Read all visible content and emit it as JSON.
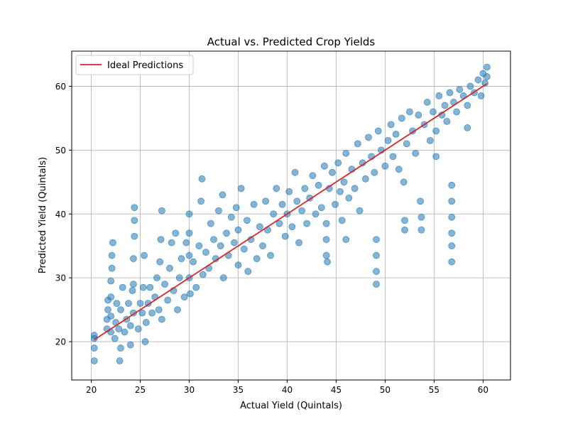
{
  "chart_data": {
    "type": "scatter",
    "title": "Actual vs. Predicted Crop Yields",
    "xlabel": "Actual Yield (Quintals)",
    "ylabel": "Predicted Yield (Quintals)",
    "xlim": [
      18.0,
      62.8
    ],
    "ylim": [
      14.0,
      65.5
    ],
    "xticks": [
      20,
      25,
      30,
      35,
      40,
      45,
      50,
      55,
      60
    ],
    "yticks": [
      20,
      30,
      40,
      50,
      60
    ],
    "grid": true,
    "legend": {
      "placement": "top-left",
      "entries": [
        "Ideal Predictions"
      ]
    },
    "colors": {
      "points": "#1f77b4",
      "ideal_line": "#d62728",
      "grid": "#b0b0b0"
    },
    "series": [
      {
        "kind": "scatter",
        "points": [
          [
            20.3,
            20.5
          ],
          [
            20.3,
            19.0
          ],
          [
            20.3,
            17.0
          ],
          [
            20.3,
            21.0
          ],
          [
            21.6,
            22.0
          ],
          [
            21.6,
            23.5
          ],
          [
            21.7,
            25.0
          ],
          [
            21.7,
            26.5
          ],
          [
            22.0,
            21.5
          ],
          [
            22.0,
            24.0
          ],
          [
            22.0,
            27.0
          ],
          [
            22.0,
            29.5
          ],
          [
            22.1,
            31.5
          ],
          [
            22.1,
            33.5
          ],
          [
            22.2,
            35.5
          ],
          [
            22.4,
            20.5
          ],
          [
            22.5,
            23.0
          ],
          [
            22.6,
            26.0
          ],
          [
            22.8,
            22.0
          ],
          [
            22.9,
            17.0
          ],
          [
            23.0,
            19.0
          ],
          [
            23.0,
            25.0
          ],
          [
            23.2,
            28.5
          ],
          [
            23.4,
            21.5
          ],
          [
            23.6,
            23.5
          ],
          [
            23.8,
            26.0
          ],
          [
            24.0,
            19.5
          ],
          [
            24.0,
            22.5
          ],
          [
            24.2,
            28.0
          ],
          [
            24.3,
            24.5
          ],
          [
            24.3,
            29.0
          ],
          [
            24.3,
            33.0
          ],
          [
            24.4,
            36.5
          ],
          [
            24.4,
            39.0
          ],
          [
            24.4,
            41.0
          ],
          [
            24.8,
            22.0
          ],
          [
            25.0,
            26.0
          ],
          [
            25.2,
            24.5
          ],
          [
            25.3,
            28.5
          ],
          [
            25.4,
            33.5
          ],
          [
            25.5,
            20.0
          ],
          [
            25.6,
            23.0
          ],
          [
            25.8,
            26.0
          ],
          [
            26.0,
            28.5
          ],
          [
            26.2,
            24.5
          ],
          [
            26.5,
            27.0
          ],
          [
            26.7,
            30.0
          ],
          [
            26.9,
            25.0
          ],
          [
            27.0,
            32.5
          ],
          [
            27.1,
            36.0
          ],
          [
            27.2,
            40.5
          ],
          [
            27.2,
            23.5
          ],
          [
            27.5,
            29.0
          ],
          [
            27.8,
            26.5
          ],
          [
            28.0,
            31.5
          ],
          [
            28.2,
            35.5
          ],
          [
            28.4,
            28.0
          ],
          [
            28.6,
            37.0
          ],
          [
            28.8,
            25.0
          ],
          [
            29.0,
            30.0
          ],
          [
            29.2,
            33.0
          ],
          [
            29.5,
            27.0
          ],
          [
            29.7,
            35.5
          ],
          [
            30.0,
            30.0
          ],
          [
            30.0,
            33.5
          ],
          [
            30.0,
            37.0
          ],
          [
            30.0,
            40.0
          ],
          [
            30.1,
            27.5
          ],
          [
            30.4,
            32.5
          ],
          [
            30.7,
            28.5
          ],
          [
            31.0,
            35.0
          ],
          [
            31.2,
            42.0
          ],
          [
            31.3,
            45.5
          ],
          [
            31.4,
            30.5
          ],
          [
            31.7,
            34.0
          ],
          [
            32.0,
            31.5
          ],
          [
            32.2,
            38.5
          ],
          [
            32.5,
            36.0
          ],
          [
            32.7,
            33.0
          ],
          [
            33.0,
            40.5
          ],
          [
            33.2,
            35.0
          ],
          [
            33.4,
            43.0
          ],
          [
            33.5,
            30.0
          ],
          [
            33.8,
            37.0
          ],
          [
            34.0,
            33.5
          ],
          [
            34.3,
            39.5
          ],
          [
            34.6,
            35.5
          ],
          [
            34.8,
            41.0
          ],
          [
            35.0,
            32.0
          ],
          [
            35.0,
            37.5
          ],
          [
            35.3,
            44.0
          ],
          [
            35.6,
            34.5
          ],
          [
            35.9,
            39.0
          ],
          [
            36.0,
            31.0
          ],
          [
            36.3,
            36.0
          ],
          [
            36.6,
            41.5
          ],
          [
            36.9,
            33.0
          ],
          [
            37.2,
            38.0
          ],
          [
            37.5,
            35.0
          ],
          [
            37.8,
            42.0
          ],
          [
            38.0,
            37.5
          ],
          [
            38.3,
            33.5
          ],
          [
            38.6,
            40.0
          ],
          [
            38.9,
            44.0
          ],
          [
            39.2,
            38.5
          ],
          [
            39.5,
            41.5
          ],
          [
            39.8,
            36.5
          ],
          [
            40.0,
            40.0
          ],
          [
            40.2,
            43.5
          ],
          [
            40.5,
            38.0
          ],
          [
            40.8,
            46.5
          ],
          [
            41.0,
            42.0
          ],
          [
            41.2,
            35.5
          ],
          [
            41.5,
            40.5
          ],
          [
            41.8,
            44.0
          ],
          [
            42.0,
            38.5
          ],
          [
            42.3,
            42.5
          ],
          [
            42.6,
            46.0
          ],
          [
            42.9,
            40.0
          ],
          [
            43.2,
            44.5
          ],
          [
            43.5,
            41.0
          ],
          [
            43.8,
            47.5
          ],
          [
            44.0,
            38.5
          ],
          [
            44.0,
            36.0
          ],
          [
            44.0,
            33.5
          ],
          [
            44.1,
            32.5
          ],
          [
            44.3,
            44.0
          ],
          [
            44.6,
            46.5
          ],
          [
            44.9,
            41.5
          ],
          [
            45.2,
            48.0
          ],
          [
            45.4,
            43.5
          ],
          [
            45.6,
            39.0
          ],
          [
            45.8,
            45.0
          ],
          [
            46.0,
            49.5
          ],
          [
            46.0,
            36.0
          ],
          [
            46.3,
            42.5
          ],
          [
            46.6,
            47.0
          ],
          [
            46.9,
            44.0
          ],
          [
            47.2,
            51.0
          ],
          [
            47.4,
            40.5
          ],
          [
            47.7,
            48.0
          ],
          [
            48.0,
            45.5
          ],
          [
            48.3,
            52.0
          ],
          [
            48.6,
            49.0
          ],
          [
            48.9,
            46.5
          ],
          [
            49.1,
            29.0
          ],
          [
            49.1,
            31.0
          ],
          [
            49.1,
            33.5
          ],
          [
            49.1,
            36.0
          ],
          [
            49.3,
            53.0
          ],
          [
            49.6,
            50.0
          ],
          [
            50.0,
            47.5
          ],
          [
            50.3,
            51.5
          ],
          [
            50.6,
            54.0
          ],
          [
            50.8,
            49.0
          ],
          [
            51.1,
            52.5
          ],
          [
            51.4,
            47.0
          ],
          [
            51.7,
            55.0
          ],
          [
            51.9,
            45.0
          ],
          [
            52.0,
            39.0
          ],
          [
            52.0,
            37.5
          ],
          [
            52.2,
            51.0
          ],
          [
            52.5,
            56.0
          ],
          [
            52.8,
            53.0
          ],
          [
            53.1,
            49.5
          ],
          [
            53.4,
            55.5
          ],
          [
            53.6,
            42.0
          ],
          [
            53.7,
            39.5
          ],
          [
            53.7,
            37.5
          ],
          [
            54.0,
            54.0
          ],
          [
            54.3,
            57.5
          ],
          [
            54.6,
            51.5
          ],
          [
            54.9,
            56.0
          ],
          [
            55.2,
            53.0
          ],
          [
            55.2,
            49.0
          ],
          [
            55.5,
            58.5
          ],
          [
            55.8,
            55.5
          ],
          [
            56.1,
            57.0
          ],
          [
            56.3,
            54.5
          ],
          [
            56.6,
            59.0
          ],
          [
            56.8,
            44.5
          ],
          [
            56.8,
            42.0
          ],
          [
            56.8,
            39.5
          ],
          [
            56.8,
            37.0
          ],
          [
            56.8,
            35.0
          ],
          [
            56.8,
            32.5
          ],
          [
            57.0,
            57.5
          ],
          [
            57.3,
            56.0
          ],
          [
            57.6,
            59.5
          ],
          [
            58.0,
            58.5
          ],
          [
            58.4,
            53.5
          ],
          [
            58.4,
            57.0
          ],
          [
            58.7,
            60.0
          ],
          [
            59.1,
            59.0
          ],
          [
            59.5,
            61.0
          ],
          [
            59.8,
            58.5
          ],
          [
            60.0,
            62.0
          ],
          [
            60.2,
            60.5
          ],
          [
            60.4,
            63.0
          ],
          [
            60.4,
            61.5
          ]
        ]
      },
      {
        "kind": "line",
        "name": "Ideal Predictions",
        "x": [
          20.3,
          60.4
        ],
        "y": [
          20.3,
          60.4
        ]
      }
    ]
  }
}
